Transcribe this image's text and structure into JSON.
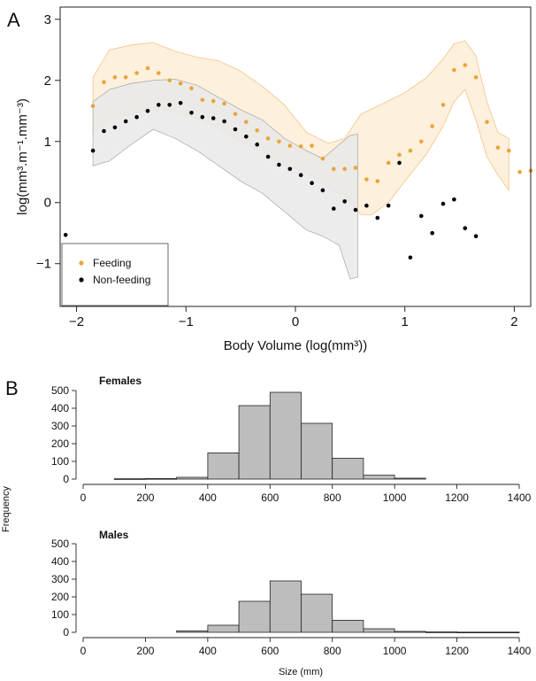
{
  "chart_data": [
    {
      "type": "scatter",
      "panel_label": "A",
      "xlabel": "Body Volume (log(mm³))",
      "ylabel": "log(mm³.m⁻¹.mm⁻³)",
      "xlim": [
        -2.15,
        2.15
      ],
      "ylim": [
        -1.7,
        3.2
      ],
      "xticks": [
        -2,
        -1,
        0,
        1,
        2
      ],
      "xtick_labels": [
        "−2",
        "−1",
        "0",
        "1",
        "2"
      ],
      "yticks": [
        -1,
        0,
        1,
        2,
        3
      ],
      "ytick_labels": [
        "−1",
        "0",
        "1",
        "2",
        "3"
      ],
      "grid": false,
      "legend_position": "bottom-left",
      "series": [
        {
          "name": "Feeding",
          "color": "#e8a43c",
          "band_color": "#fdf0dc",
          "band_edge_color": "#f3c48a",
          "points": [
            [
              -1.85,
              1.58
            ],
            [
              -1.75,
              1.97
            ],
            [
              -1.65,
              2.05
            ],
            [
              -1.55,
              2.05
            ],
            [
              -1.45,
              2.12
            ],
            [
              -1.35,
              2.2
            ],
            [
              -1.25,
              2.12
            ],
            [
              -1.15,
              2.0
            ],
            [
              -1.05,
              1.95
            ],
            [
              -0.95,
              1.87
            ],
            [
              -0.85,
              1.68
            ],
            [
              -0.75,
              1.66
            ],
            [
              -0.65,
              1.62
            ],
            [
              -0.55,
              1.45
            ],
            [
              -0.45,
              1.32
            ],
            [
              -0.35,
              1.18
            ],
            [
              -0.25,
              1.05
            ],
            [
              -0.15,
              1.0
            ],
            [
              -0.05,
              0.93
            ],
            [
              0.05,
              0.92
            ],
            [
              0.15,
              0.93
            ],
            [
              0.25,
              0.72
            ],
            [
              0.35,
              0.55
            ],
            [
              0.45,
              0.55
            ],
            [
              0.55,
              0.57
            ],
            [
              0.65,
              0.38
            ],
            [
              0.75,
              0.35
            ],
            [
              0.85,
              0.65
            ],
            [
              0.95,
              0.78
            ],
            [
              1.05,
              0.85
            ],
            [
              1.15,
              1.0
            ],
            [
              1.25,
              1.25
            ],
            [
              1.35,
              1.6
            ],
            [
              1.45,
              2.17
            ],
            [
              1.55,
              2.25
            ],
            [
              1.65,
              2.05
            ],
            [
              1.75,
              1.32
            ],
            [
              1.85,
              0.9
            ],
            [
              1.95,
              0.85
            ],
            [
              2.05,
              0.5
            ],
            [
              2.15,
              0.52
            ]
          ],
          "band_upper": [
            [
              -1.85,
              2.05
            ],
            [
              -1.7,
              2.5
            ],
            [
              -1.5,
              2.58
            ],
            [
              -1.3,
              2.62
            ],
            [
              -1.1,
              2.48
            ],
            [
              -0.9,
              2.38
            ],
            [
              -0.7,
              2.32
            ],
            [
              -0.5,
              2.15
            ],
            [
              -0.3,
              1.9
            ],
            [
              -0.1,
              1.6
            ],
            [
              0.1,
              1.15
            ],
            [
              0.3,
              0.97
            ],
            [
              0.45,
              1.05
            ],
            [
              0.6,
              1.45
            ],
            [
              0.8,
              1.62
            ],
            [
              1.0,
              1.8
            ],
            [
              1.2,
              2.05
            ],
            [
              1.35,
              2.35
            ],
            [
              1.45,
              2.6
            ],
            [
              1.55,
              2.65
            ],
            [
              1.65,
              2.4
            ],
            [
              1.75,
              1.65
            ],
            [
              1.85,
              1.15
            ],
            [
              1.95,
              1.05
            ]
          ],
          "band_lower": [
            [
              1.95,
              0.2
            ],
            [
              1.85,
              0.45
            ],
            [
              1.75,
              0.75
            ],
            [
              1.65,
              1.35
            ],
            [
              1.55,
              1.85
            ],
            [
              1.45,
              1.65
            ],
            [
              1.35,
              1.25
            ],
            [
              1.2,
              0.8
            ],
            [
              1.0,
              0.35
            ],
            [
              0.85,
              0.0
            ],
            [
              0.7,
              -0.2
            ],
            [
              0.6,
              -0.2
            ],
            [
              0.45,
              0.1
            ],
            [
              0.3,
              0.25
            ],
            [
              0.1,
              0.5
            ],
            [
              -0.1,
              0.62
            ],
            [
              -0.3,
              0.82
            ],
            [
              -0.5,
              1.0
            ],
            [
              -0.7,
              1.22
            ],
            [
              -0.9,
              1.38
            ],
            [
              -1.1,
              1.48
            ],
            [
              -1.3,
              1.52
            ],
            [
              -1.5,
              1.45
            ],
            [
              -1.7,
              1.35
            ],
            [
              -1.85,
              1.15
            ]
          ]
        },
        {
          "name": "Non-feeding",
          "color": "#000000",
          "band_color": "#e9e9e9",
          "band_edge_color": "#b0b0b0",
          "points": [
            [
              -2.1,
              -0.53
            ],
            [
              -1.85,
              0.85
            ],
            [
              -1.75,
              1.17
            ],
            [
              -1.65,
              1.23
            ],
            [
              -1.55,
              1.33
            ],
            [
              -1.45,
              1.4
            ],
            [
              -1.35,
              1.5
            ],
            [
              -1.25,
              1.6
            ],
            [
              -1.15,
              1.6
            ],
            [
              -1.05,
              1.63
            ],
            [
              -0.95,
              1.47
            ],
            [
              -0.85,
              1.4
            ],
            [
              -0.75,
              1.38
            ],
            [
              -0.65,
              1.33
            ],
            [
              -0.55,
              1.2
            ],
            [
              -0.45,
              1.08
            ],
            [
              -0.35,
              0.95
            ],
            [
              -0.25,
              0.75
            ],
            [
              -0.15,
              0.62
            ],
            [
              -0.05,
              0.55
            ],
            [
              0.05,
              0.45
            ],
            [
              0.15,
              0.32
            ],
            [
              0.25,
              0.2
            ],
            [
              0.35,
              -0.1
            ],
            [
              0.45,
              0.02
            ],
            [
              0.55,
              -0.12
            ],
            [
              0.65,
              -0.05
            ],
            [
              0.75,
              -0.25
            ],
            [
              0.85,
              -0.05
            ],
            [
              0.95,
              0.65
            ],
            [
              1.05,
              -0.9
            ],
            [
              1.15,
              -0.22
            ],
            [
              1.25,
              -0.5
            ],
            [
              1.35,
              -0.02
            ],
            [
              1.45,
              0.05
            ],
            [
              1.55,
              -0.42
            ],
            [
              1.65,
              -0.55
            ]
          ],
          "band_upper": [
            [
              -1.85,
              1.65
            ],
            [
              -1.7,
              1.85
            ],
            [
              -1.5,
              1.95
            ],
            [
              -1.3,
              2.0
            ],
            [
              -1.1,
              2.02
            ],
            [
              -0.9,
              1.92
            ],
            [
              -0.7,
              1.72
            ],
            [
              -0.5,
              1.52
            ],
            [
              -0.3,
              1.35
            ],
            [
              -0.1,
              1.05
            ],
            [
              0.1,
              0.85
            ],
            [
              0.25,
              0.72
            ],
            [
              0.4,
              0.95
            ],
            [
              0.5,
              1.1
            ],
            [
              0.57,
              1.12
            ],
            [
              0.57,
              -1.22
            ]
          ],
          "band_lower": [
            [
              0.5,
              -1.25
            ],
            [
              0.4,
              -0.7
            ],
            [
              0.25,
              -0.55
            ],
            [
              0.1,
              -0.45
            ],
            [
              -0.1,
              -0.15
            ],
            [
              -0.3,
              0.15
            ],
            [
              -0.5,
              0.35
            ],
            [
              -0.7,
              0.6
            ],
            [
              -0.9,
              0.85
            ],
            [
              -1.1,
              1.05
            ],
            [
              -1.3,
              1.2
            ],
            [
              -1.5,
              0.95
            ],
            [
              -1.7,
              0.68
            ],
            [
              -1.85,
              0.6
            ]
          ]
        }
      ]
    },
    {
      "type": "bar",
      "panel_label": "B",
      "title": "Females",
      "ylabel": "Frequency",
      "bins": [
        [
          100,
          200
        ],
        [
          200,
          300
        ],
        [
          300,
          400
        ],
        [
          400,
          500
        ],
        [
          500,
          600
        ],
        [
          600,
          700
        ],
        [
          700,
          800
        ],
        [
          800,
          900
        ],
        [
          900,
          1000
        ],
        [
          1000,
          1100
        ]
      ],
      "values": [
        2,
        3,
        10,
        148,
        415,
        490,
        315,
        118,
        22,
        5
      ],
      "xlim": [
        0,
        1400
      ],
      "ylim": [
        0,
        500
      ],
      "xticks": [
        0,
        200,
        400,
        600,
        800,
        1000,
        1200,
        1400
      ],
      "yticks": [
        0,
        100,
        200,
        300,
        400,
        500
      ],
      "bar_color": "#bdbdbd",
      "grid": false
    },
    {
      "type": "bar",
      "panel_label": "",
      "title": "Males",
      "xlabel": "Size (mm)",
      "ylabel": "Frequency",
      "bins": [
        [
          300,
          400
        ],
        [
          400,
          500
        ],
        [
          500,
          600
        ],
        [
          600,
          700
        ],
        [
          700,
          800
        ],
        [
          800,
          900
        ],
        [
          900,
          1000
        ],
        [
          1000,
          1100
        ],
        [
          1100,
          1200
        ],
        [
          1200,
          1300
        ],
        [
          1300,
          1400
        ]
      ],
      "values": [
        8,
        40,
        175,
        290,
        215,
        68,
        20,
        5,
        2,
        1,
        1
      ],
      "xlim": [
        0,
        1400
      ],
      "ylim": [
        0,
        500
      ],
      "xticks": [
        0,
        200,
        400,
        600,
        800,
        1000,
        1200,
        1400
      ],
      "yticks": [
        0,
        100,
        200,
        300,
        400,
        500
      ],
      "bar_color": "#bdbdbd",
      "grid": false
    }
  ]
}
